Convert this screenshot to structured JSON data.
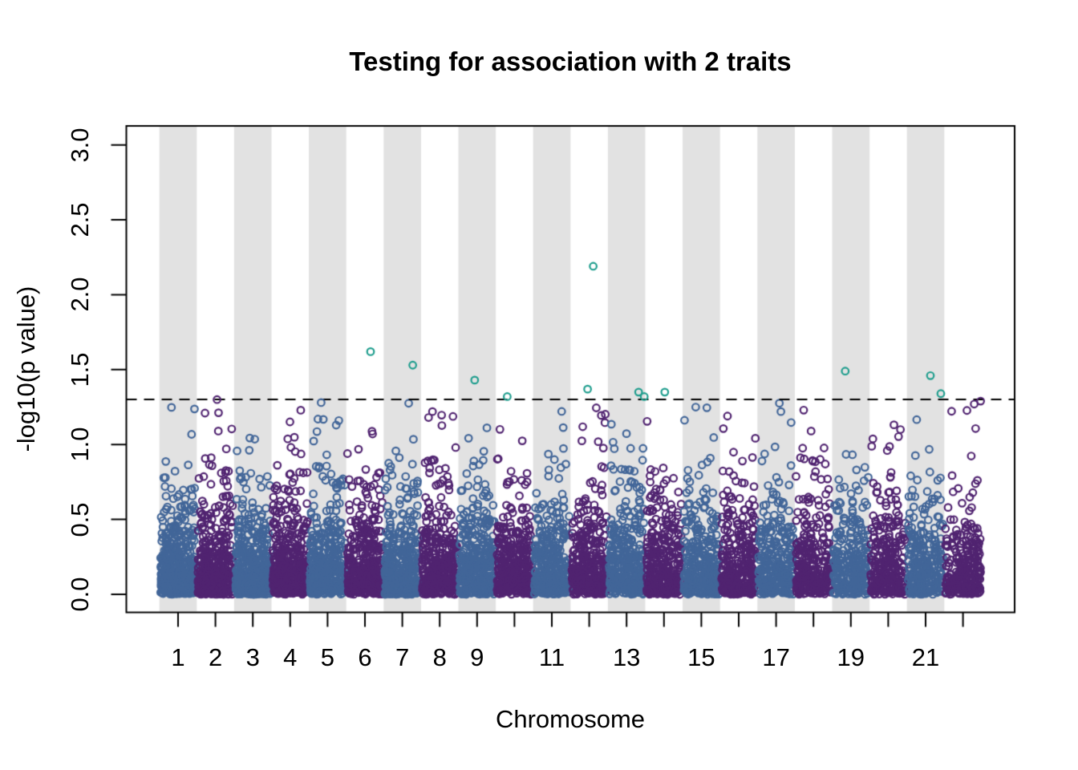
{
  "title": "Testing for association with 2 traits",
  "x_axis": {
    "label": "Chromosome",
    "tick_chromosomes": [
      1,
      2,
      3,
      4,
      5,
      6,
      7,
      8,
      9,
      10,
      11,
      12,
      13,
      14,
      15,
      16,
      17,
      18,
      19,
      20,
      21,
      22
    ],
    "shown_labels": [
      {
        "chr": 1,
        "label": "1"
      },
      {
        "chr": 2,
        "label": "2"
      },
      {
        "chr": 3,
        "label": "3"
      },
      {
        "chr": 4,
        "label": "4"
      },
      {
        "chr": 5,
        "label": "5"
      },
      {
        "chr": 6,
        "label": "6"
      },
      {
        "chr": 7,
        "label": "7"
      },
      {
        "chr": 8,
        "label": "8"
      },
      {
        "chr": 9,
        "label": "9"
      },
      {
        "chr": 11,
        "label": "11"
      },
      {
        "chr": 13,
        "label": "13"
      },
      {
        "chr": 15,
        "label": "15"
      },
      {
        "chr": 17,
        "label": "17"
      },
      {
        "chr": 19,
        "label": "19"
      },
      {
        "chr": 21,
        "label": "21"
      }
    ]
  },
  "y_axis": {
    "label": "-log10(p value)",
    "ticks": [
      0.0,
      0.5,
      1.0,
      1.5,
      2.0,
      2.5,
      3.0
    ],
    "tick_labels": [
      "0.0",
      "0.5",
      "1.0",
      "1.5",
      "2.0",
      "2.5",
      "3.0"
    ]
  },
  "chart_data": {
    "type": "scatter",
    "subtype": "manhattan",
    "title": "Testing for association with 2 traits",
    "xlabel": "Chromosome",
    "ylabel": "-log10(p value)",
    "ylim": [
      0,
      3.1
    ],
    "n_chromosomes": 22,
    "threshold_line": {
      "value": 1.301,
      "meaning": "-log10(0.05)",
      "style": "dashed",
      "color": "#000000"
    },
    "shaded_band_chromosomes": [
      1,
      3,
      5,
      7,
      9,
      11,
      13,
      15,
      17,
      19,
      21
    ],
    "colors": {
      "odd_chromosome_points": "#426699",
      "even_chromosome_points": "#512471",
      "significant_points": "#1f9e8e",
      "chromosome_band": "#e2e2e2",
      "axis_and_text": "#000000",
      "background": "#ffffff"
    },
    "significant_points": [
      {
        "chr": 6,
        "value": 1.62,
        "position_offset": 7
      },
      {
        "chr": 7,
        "value": 1.53,
        "position_offset": 13
      },
      {
        "chr": 9,
        "value": 1.43,
        "position_offset": -3
      },
      {
        "chr": 10,
        "value": 1.32,
        "position_offset": -9
      },
      {
        "chr": 12,
        "value": 2.19,
        "position_offset": 5
      },
      {
        "chr": 12,
        "value": 1.37,
        "position_offset": -2
      },
      {
        "chr": 13,
        "value": 1.35,
        "position_offset": 15
      },
      {
        "chr": 13,
        "value": 1.32,
        "position_offset": 22
      },
      {
        "chr": 14,
        "value": 1.35,
        "position_offset": 1
      },
      {
        "chr": 19,
        "value": 1.49,
        "position_offset": -7
      },
      {
        "chr": 21,
        "value": 1.46,
        "position_offset": 6
      },
      {
        "chr": 21,
        "value": 1.34,
        "position_offset": 19
      }
    ],
    "near_threshold_points": [
      {
        "chr": 2,
        "value": 1.3,
        "position_offset": 2
      },
      {
        "chr": 2,
        "value": 1.21,
        "position_offset": -13
      },
      {
        "chr": 5,
        "value": 1.28,
        "position_offset": -8
      },
      {
        "chr": 5,
        "value": 1.17,
        "position_offset": -12
      },
      {
        "chr": 8,
        "value": 1.22,
        "position_offset": -9
      },
      {
        "chr": 15,
        "value": 1.25,
        "position_offset": -7
      },
      {
        "chr": 16,
        "value": 1.19,
        "position_offset": -14
      },
      {
        "chr": 17,
        "value": 1.22,
        "position_offset": 6
      },
      {
        "chr": 22,
        "value": 1.27,
        "position_offset": 14
      },
      {
        "chr": 22,
        "value": 1.29,
        "position_offset": 22
      }
    ],
    "background_points": {
      "description": "dense null-distribution points per chromosome, open circles",
      "points_per_chromosome_base": 480,
      "points_per_chromosome_slope": -10,
      "value_distribution": {
        "type": "exponential",
        "rate": 4.5,
        "max": 1.28
      },
      "seed": 1337
    }
  }
}
